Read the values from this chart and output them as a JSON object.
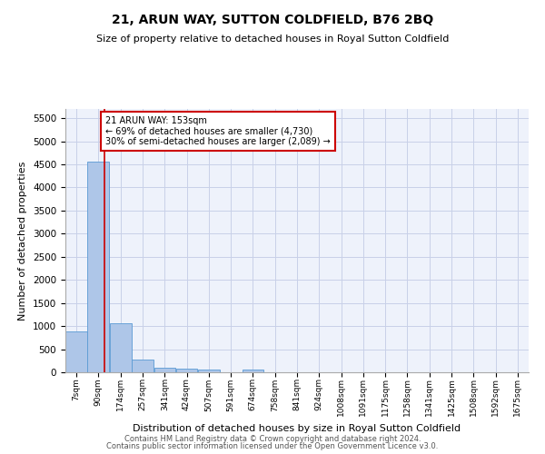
{
  "title": "21, ARUN WAY, SUTTON COLDFIELD, B76 2BQ",
  "subtitle": "Size of property relative to detached houses in Royal Sutton Coldfield",
  "xlabel": "Distribution of detached houses by size in Royal Sutton Coldfield",
  "ylabel": "Number of detached properties",
  "footer1": "Contains HM Land Registry data © Crown copyright and database right 2024.",
  "footer2": "Contains public sector information licensed under the Open Government Licence v3.0.",
  "annotation_line1": "21 ARUN WAY: 153sqm",
  "annotation_line2": "← 69% of detached houses are smaller (4,730)",
  "annotation_line3": "30% of semi-detached houses are larger (2,089) →",
  "property_size": 153,
  "bar_labels": [
    "7sqm",
    "90sqm",
    "174sqm",
    "257sqm",
    "341sqm",
    "424sqm",
    "507sqm",
    "591sqm",
    "674sqm",
    "758sqm",
    "841sqm",
    "924sqm",
    "1008sqm",
    "1091sqm",
    "1175sqm",
    "1258sqm",
    "1341sqm",
    "1425sqm",
    "1508sqm",
    "1592sqm",
    "1675sqm"
  ],
  "bar_values": [
    880,
    4560,
    1060,
    285,
    95,
    75,
    55,
    0,
    50,
    0,
    0,
    0,
    0,
    0,
    0,
    0,
    0,
    0,
    0,
    0,
    0
  ],
  "bar_left_edges": [
    7,
    90,
    174,
    257,
    341,
    424,
    507,
    591,
    674,
    758,
    841,
    924,
    1008,
    1091,
    1175,
    1258,
    1341,
    1425,
    1508,
    1592,
    1675
  ],
  "bin_width": 83,
  "bar_color": "#aec6e8",
  "bar_edge_color": "#5a9ad4",
  "vline_color": "#cc0000",
  "vline_x": 153,
  "annotation_box_color": "#cc0000",
  "background_color": "#eef2fb",
  "grid_color": "#c8d0e8",
  "ylim": [
    0,
    5700
  ],
  "yticks": [
    0,
    500,
    1000,
    1500,
    2000,
    2500,
    3000,
    3500,
    4000,
    4500,
    5000,
    5500
  ]
}
